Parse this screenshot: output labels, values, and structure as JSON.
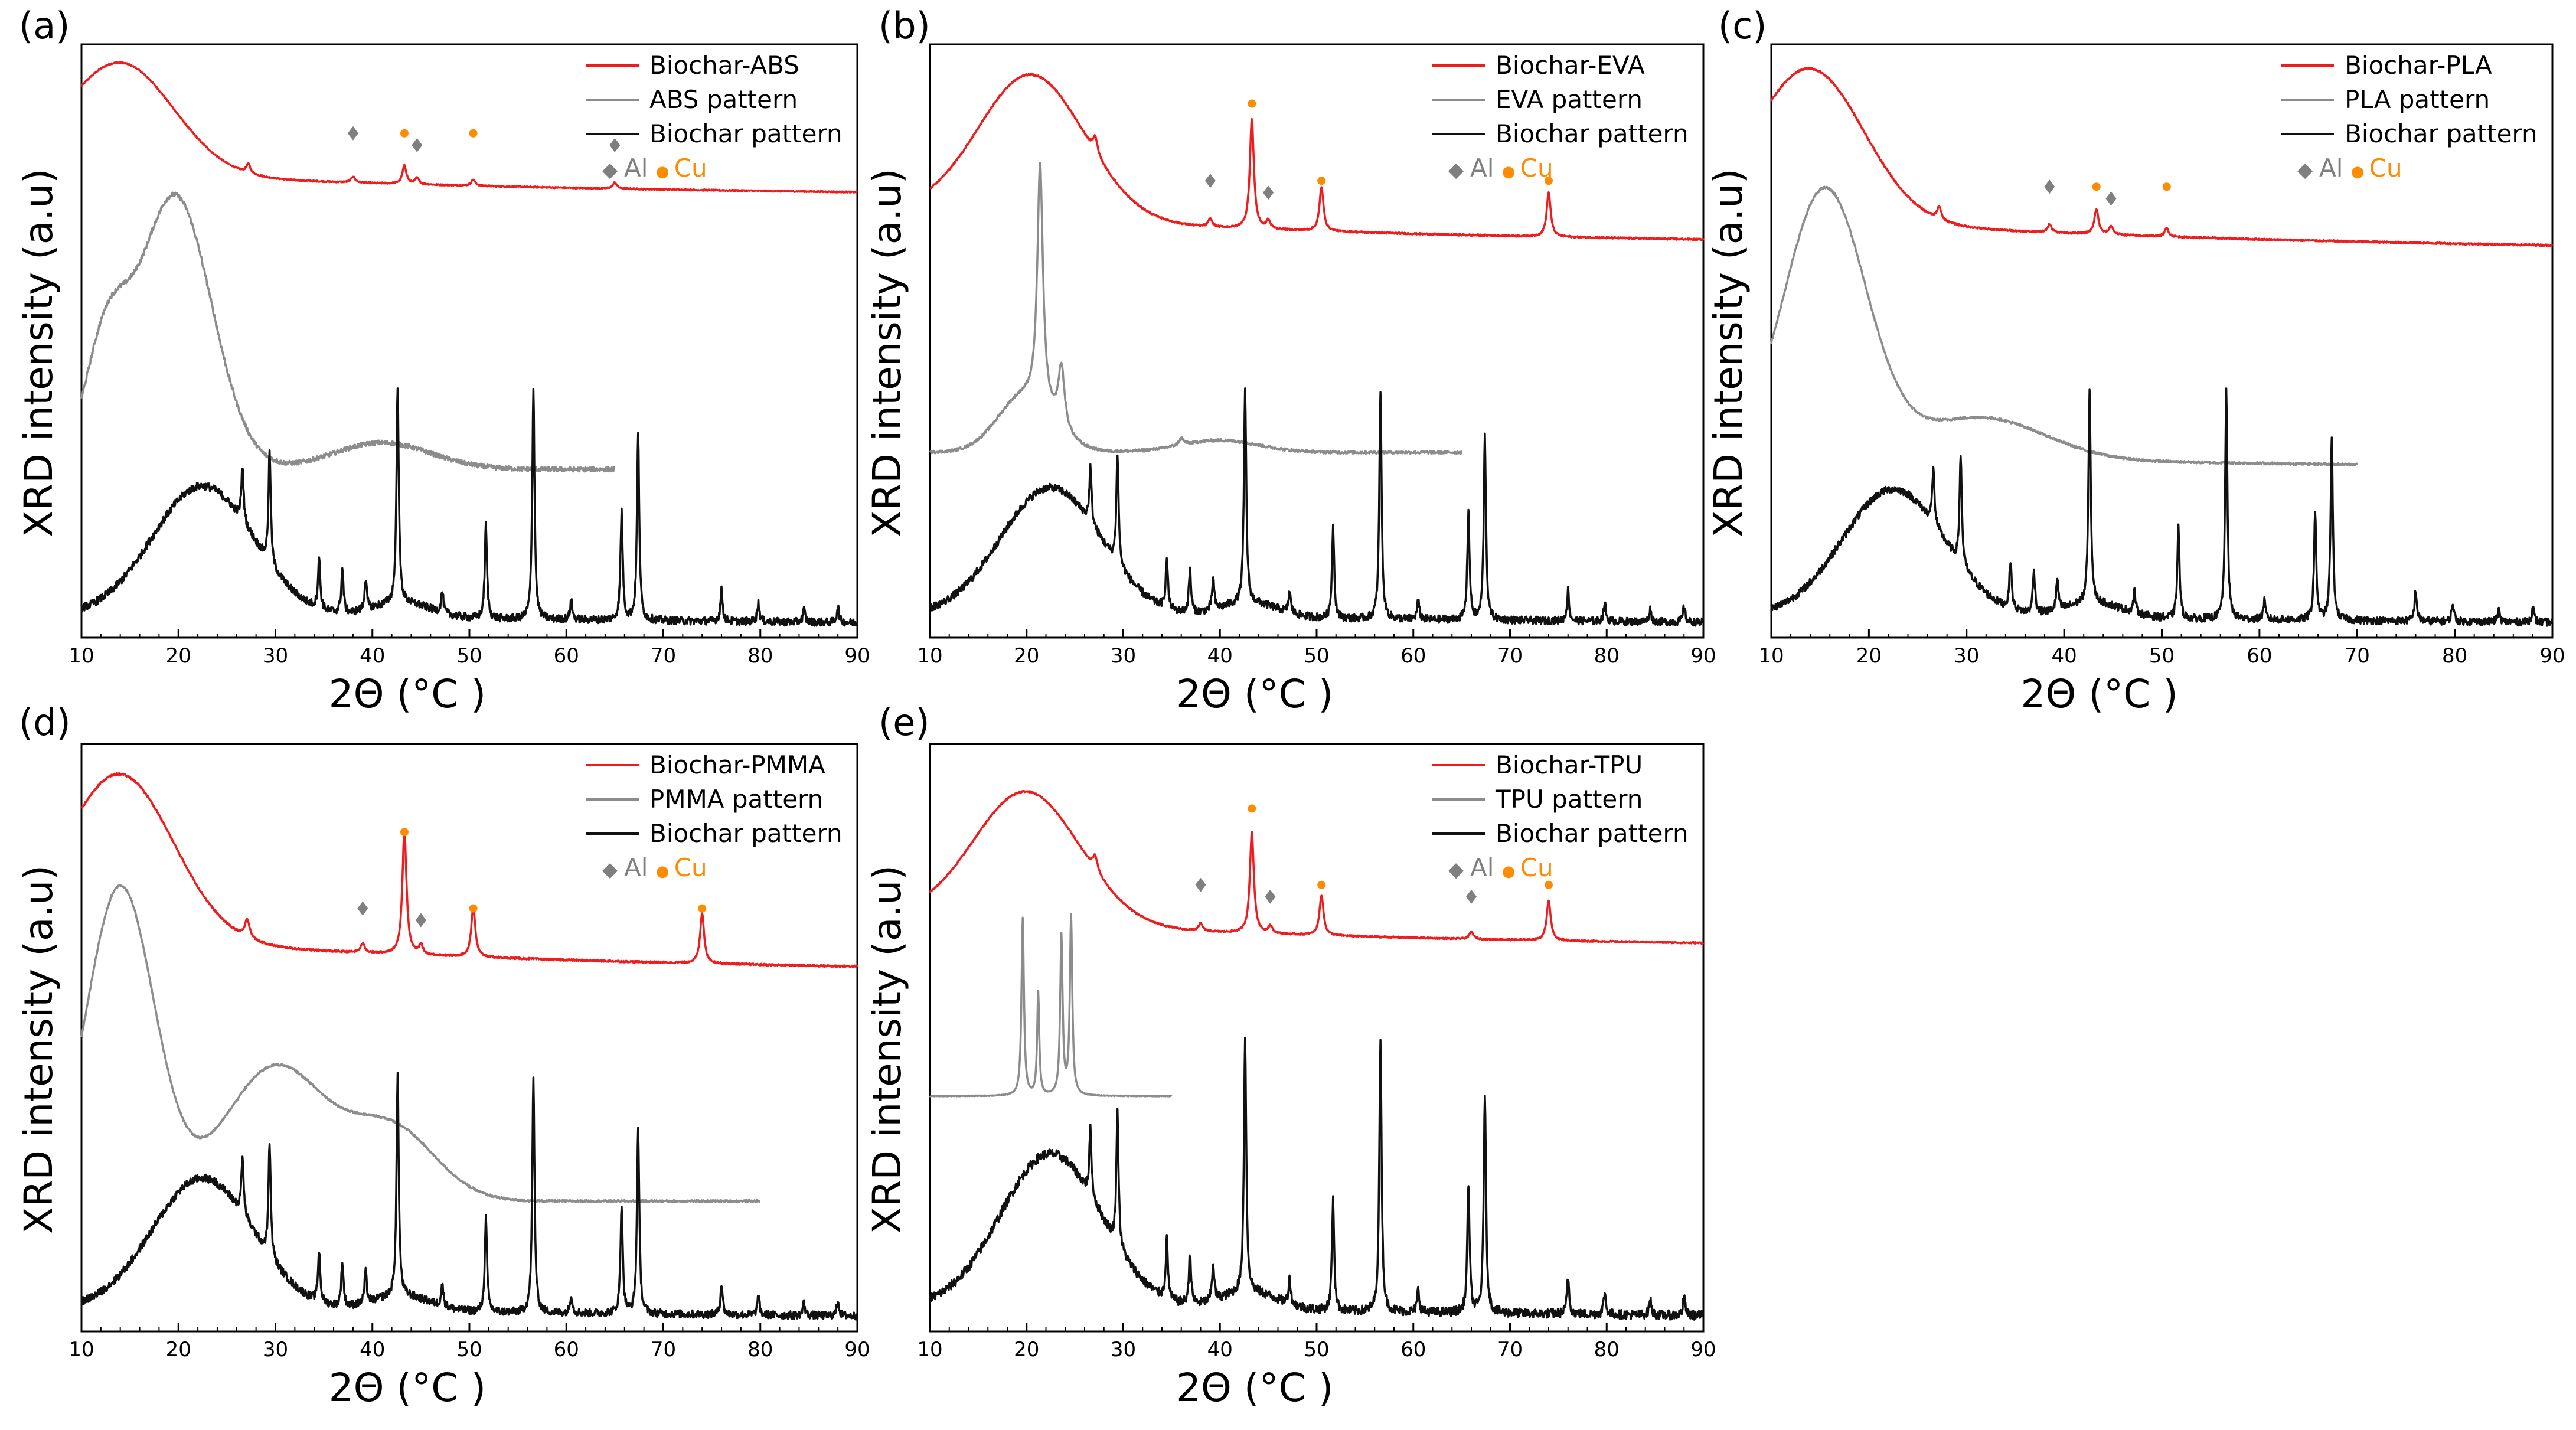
{
  "figure": {
    "xlabel": "2Θ (°C )",
    "ylabel": "XRD intensity (a.u)",
    "colors": {
      "composite": "#ee1c1c",
      "polymer": "#8c8c8c",
      "biochar": "#111111",
      "al": "#7f7f7f",
      "cu": "#ff8c00"
    },
    "marker_legend": {
      "al_symbol": "◆",
      "al_label": "Al",
      "cu_symbol": "●",
      "cu_label": "Cu"
    }
  },
  "chart_data": [
    {
      "type": "line",
      "panel": "(a)",
      "xlim": [
        10,
        90
      ],
      "xticks": [
        10,
        20,
        30,
        40,
        50,
        60,
        70,
        80,
        90
      ],
      "series": [
        {
          "name": "Biochar-ABS",
          "role": "composite"
        },
        {
          "name": "ABS pattern",
          "role": "polymer",
          "x_end": 65
        },
        {
          "name": "Biochar pattern",
          "role": "biochar"
        }
      ],
      "al_peaks": [
        38,
        44.6,
        65
      ],
      "cu_peaks": [
        43.3,
        50.4
      ]
    },
    {
      "type": "line",
      "panel": "(b)",
      "xlim": [
        10,
        90
      ],
      "xticks": [
        10,
        20,
        30,
        40,
        50,
        60,
        70,
        80,
        90
      ],
      "series": [
        {
          "name": "Biochar-EVA",
          "role": "composite"
        },
        {
          "name": "EVA pattern",
          "role": "polymer",
          "x_end": 65
        },
        {
          "name": "Biochar pattern",
          "role": "biochar"
        }
      ],
      "al_peaks": [
        39,
        45
      ],
      "cu_peaks": [
        43.3,
        50.5,
        74
      ]
    },
    {
      "type": "line",
      "panel": "(c)",
      "xlim": [
        10,
        90
      ],
      "xticks": [
        10,
        20,
        30,
        40,
        50,
        60,
        70,
        80,
        90
      ],
      "series": [
        {
          "name": "Biochar-PLA",
          "role": "composite"
        },
        {
          "name": "PLA pattern",
          "role": "polymer",
          "x_end": 70
        },
        {
          "name": "Biochar pattern",
          "role": "biochar"
        }
      ],
      "al_peaks": [
        38.5,
        44.8
      ],
      "cu_peaks": [
        43.3,
        50.5
      ]
    },
    {
      "type": "line",
      "panel": "(d)",
      "xlim": [
        10,
        90
      ],
      "xticks": [
        10,
        20,
        30,
        40,
        50,
        60,
        70,
        80,
        90
      ],
      "series": [
        {
          "name": "Biochar-PMMA",
          "role": "composite"
        },
        {
          "name": "PMMA pattern",
          "role": "polymer",
          "x_end": 80
        },
        {
          "name": "Biochar pattern",
          "role": "biochar"
        }
      ],
      "al_peaks": [
        39,
        45
      ],
      "cu_peaks": [
        43.3,
        50.4,
        74
      ]
    },
    {
      "type": "line",
      "panel": "(e)",
      "xlim": [
        10,
        90
      ],
      "xticks": [
        10,
        20,
        30,
        40,
        50,
        60,
        70,
        80,
        90
      ],
      "series": [
        {
          "name": "Biochar-TPU",
          "role": "composite"
        },
        {
          "name": "TPU pattern",
          "role": "polymer",
          "x_end": 35
        },
        {
          "name": "Biochar pattern",
          "role": "biochar"
        }
      ],
      "al_peaks": [
        38,
        45.2,
        66
      ],
      "cu_peaks": [
        43.3,
        50.5,
        74
      ]
    }
  ]
}
